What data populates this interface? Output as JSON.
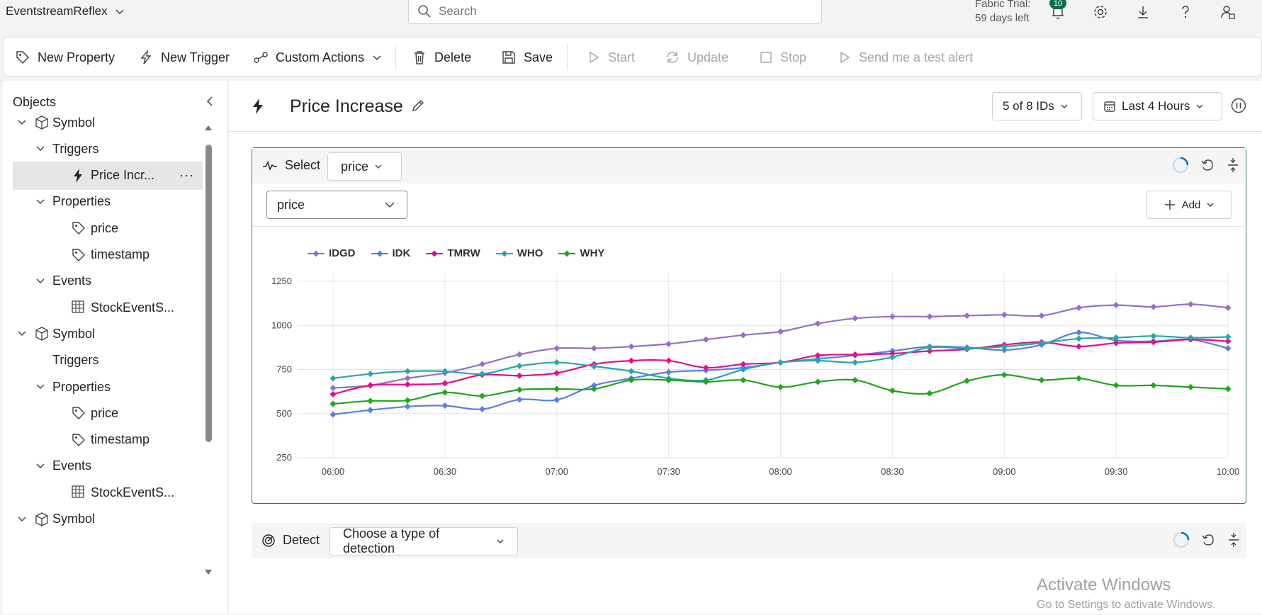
{
  "app": {
    "title": "EventstreamReflex",
    "search_placeholder": "Search",
    "trial_line1": "Fabric Trial:",
    "trial_line2": "59 days left",
    "notification_count": "10"
  },
  "toolbar": {
    "new_property": "New Property",
    "new_trigger": "New Trigger",
    "custom_actions": "Custom Actions",
    "delete": "Delete",
    "save": "Save",
    "start": "Start",
    "update": "Update",
    "stop": "Stop",
    "send_test_alert": "Send me a test alert"
  },
  "sidebar": {
    "title": "Objects",
    "items": [
      {
        "label": "Symbol",
        "level": 0,
        "chevron": "down",
        "icon": "cube-icon"
      },
      {
        "label": "Triggers",
        "level": 1,
        "chevron": "down",
        "icon": ""
      },
      {
        "label": "Price Incr...",
        "level": 2,
        "chevron": "",
        "icon": "lightning-icon",
        "selected": true
      },
      {
        "label": "Properties",
        "level": 1,
        "chevron": "down",
        "icon": ""
      },
      {
        "label": "price",
        "level": 2,
        "chevron": "",
        "icon": "tag-icon"
      },
      {
        "label": "timestamp",
        "level": 2,
        "chevron": "",
        "icon": "tag-icon"
      },
      {
        "label": "Events",
        "level": 1,
        "chevron": "down",
        "icon": ""
      },
      {
        "label": "StockEventS...",
        "level": 2,
        "chevron": "",
        "icon": "table-icon"
      },
      {
        "label": "Symbol",
        "level": 0,
        "chevron": "down",
        "icon": "cube-icon"
      },
      {
        "label": "Triggers",
        "level": 1,
        "chevron": "",
        "icon": ""
      },
      {
        "label": "Properties",
        "level": 1,
        "chevron": "down",
        "icon": ""
      },
      {
        "label": "price",
        "level": 2,
        "chevron": "",
        "icon": "tag-icon"
      },
      {
        "label": "timestamp",
        "level": 2,
        "chevron": "",
        "icon": "tag-icon"
      },
      {
        "label": "Events",
        "level": 1,
        "chevron": "down",
        "icon": ""
      },
      {
        "label": "StockEventS...",
        "level": 2,
        "chevron": "",
        "icon": "table-icon"
      },
      {
        "label": "Symbol",
        "level": 0,
        "chevron": "down",
        "icon": "cube-icon"
      }
    ]
  },
  "main": {
    "title": "Price Increase",
    "ids_dropdown": "5 of 8 IDs",
    "time_dropdown": "Last 4 Hours",
    "select_card": {
      "label": "Select",
      "select_value": "price",
      "field_value": "price",
      "add_label": "Add"
    },
    "detect_card": {
      "label": "Detect",
      "detection_placeholder": "Choose a type of detection"
    }
  },
  "watermark": {
    "line1": "Activate Windows",
    "line2": "Go to Settings to activate Windows."
  },
  "colors": {
    "accent": "#1f7a5c",
    "badge": "#0f6f4c"
  },
  "chart_data": {
    "type": "line",
    "x": [
      "06:00",
      "06:10",
      "06:20",
      "06:30",
      "06:40",
      "06:50",
      "07:00",
      "07:10",
      "07:20",
      "07:30",
      "07:40",
      "07:50",
      "08:00",
      "08:10",
      "08:20",
      "08:30",
      "08:40",
      "08:50",
      "09:00",
      "09:10",
      "09:20",
      "09:30",
      "09:40",
      "09:50",
      "10:00"
    ],
    "x_ticks": [
      "06:00",
      "06:30",
      "07:00",
      "07:30",
      "08:00",
      "08:30",
      "09:00",
      "09:30",
      "10:00"
    ],
    "y_ticks": [
      250,
      500,
      750,
      1000,
      1250
    ],
    "ylim": [
      250,
      1250
    ],
    "legend_position": "top-left",
    "grid": true,
    "series": [
      {
        "name": "IDGD",
        "color": "#9370cc",
        "values": [
          645,
          660,
          700,
          730,
          780,
          835,
          870,
          870,
          880,
          895,
          920,
          945,
          965,
          1010,
          1040,
          1050,
          1050,
          1055,
          1060,
          1055,
          1100,
          1115,
          1105,
          1120,
          1100
        ]
      },
      {
        "name": "IDK",
        "color": "#5b7fe0",
        "values": [
          495,
          520,
          540,
          545,
          525,
          580,
          578,
          660,
          700,
          735,
          745,
          760,
          790,
          810,
          830,
          855,
          880,
          875,
          860,
          890,
          960,
          915,
          910,
          920,
          870
        ]
      },
      {
        "name": "TMRW",
        "color": "#e0118a",
        "values": [
          610,
          660,
          665,
          672,
          720,
          715,
          730,
          780,
          800,
          800,
          760,
          780,
          790,
          830,
          835,
          840,
          855,
          865,
          890,
          905,
          880,
          900,
          905,
          920,
          910
        ]
      },
      {
        "name": "WHO",
        "color": "#2aa6a6",
        "values": [
          700,
          725,
          740,
          740,
          725,
          770,
          790,
          768,
          740,
          700,
          690,
          750,
          790,
          800,
          790,
          820,
          875,
          870,
          880,
          900,
          925,
          930,
          940,
          930,
          935
        ]
      },
      {
        "name": "WHY",
        "color": "#1fa51f",
        "values": [
          555,
          572,
          575,
          620,
          600,
          635,
          640,
          640,
          690,
          690,
          680,
          690,
          650,
          680,
          690,
          630,
          615,
          685,
          720,
          690,
          700,
          660,
          660,
          650,
          640
        ]
      }
    ]
  }
}
